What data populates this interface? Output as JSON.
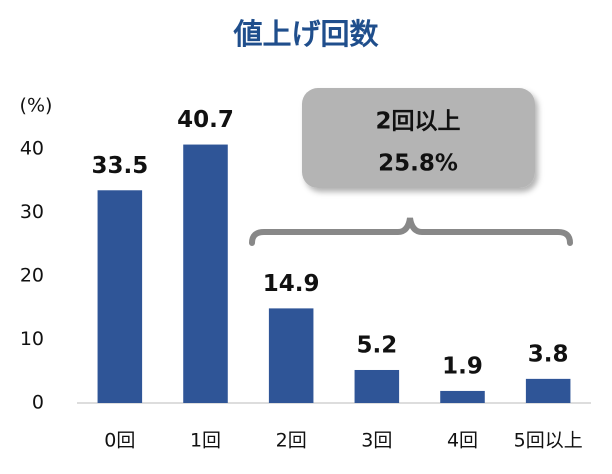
{
  "chart_data": {
    "type": "bar",
    "title": "値上げ回数",
    "y_label": "(%)",
    "categories": [
      "0回",
      "1回",
      "2回",
      "3回",
      "4回",
      "5回以上"
    ],
    "values": [
      33.5,
      40.7,
      14.9,
      5.2,
      1.9,
      3.8
    ],
    "color": "#2f5597",
    "ylim": [
      0,
      40
    ],
    "yticks": [
      0,
      10,
      20,
      30,
      40
    ],
    "grid": false,
    "annotation": [
      "2回以上",
      "25.8%"
    ]
  }
}
